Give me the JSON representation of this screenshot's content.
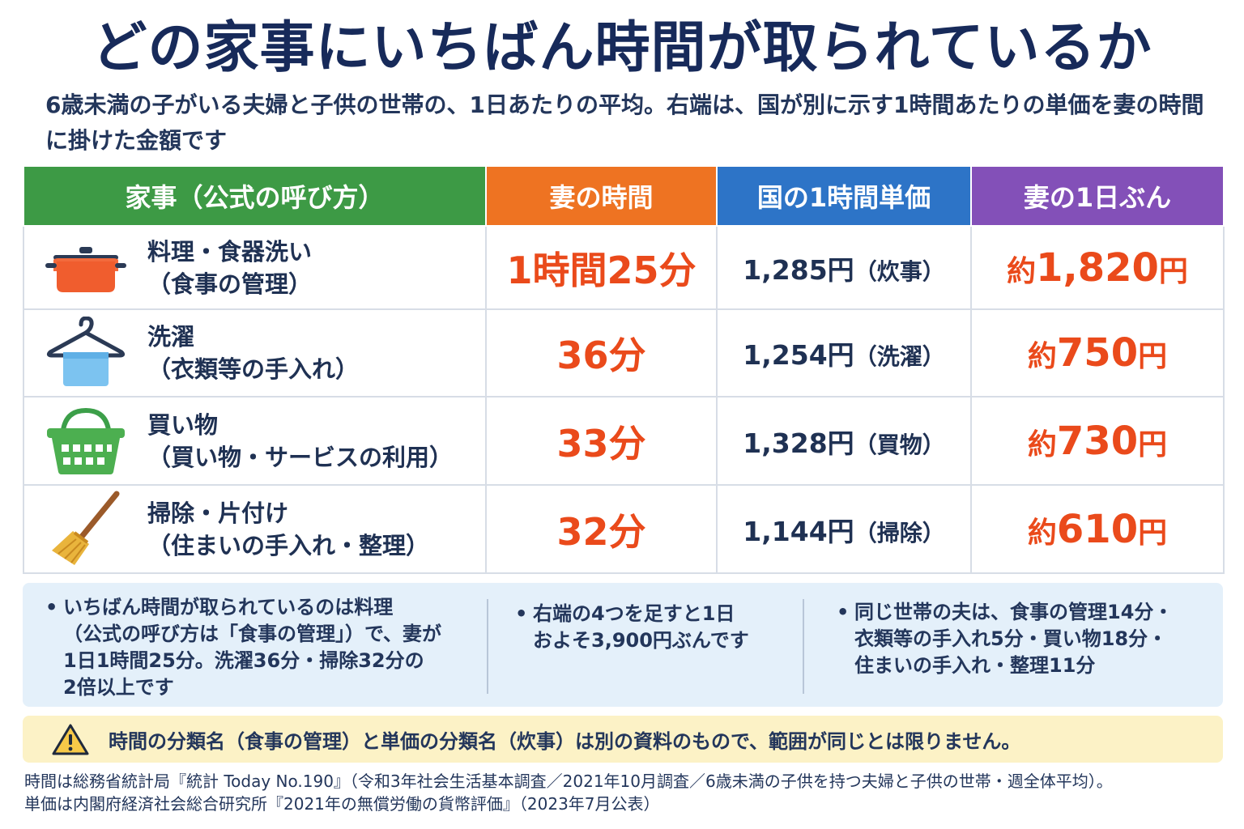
{
  "title": "どの家事にいちばん時間が取られているか",
  "subtitle": "6歳未満の子がいる夫婦と子供の世帯の、1日あたりの平均。右端は、国が別に示す1時間あたりの単価を妻の時間に掛けた金額です",
  "table": {
    "headers": [
      "家事（公式の呼び方）",
      "妻の時間",
      "国の1時間単価",
      "妻の1日ぶん"
    ],
    "header_colors": [
      "#3d9a45",
      "#ee7322",
      "#2d74c7",
      "#8350b8"
    ],
    "rows": [
      {
        "icon": "cooking-pot-icon",
        "name": "料理・食器洗い",
        "official": "（食事の管理）",
        "time": "1時間25分",
        "rate": "1,285円",
        "rate_category": "（炊事）",
        "amount_prefix": "約",
        "amount": "1,820",
        "amount_suffix": "円"
      },
      {
        "icon": "clothes-hanger-icon",
        "name": "洗濯",
        "official": "（衣類等の手入れ）",
        "time": "36分",
        "rate": "1,254円",
        "rate_category": "（洗濯）",
        "amount_prefix": "約",
        "amount": "750",
        "amount_suffix": "円"
      },
      {
        "icon": "shopping-basket-icon",
        "name": "買い物",
        "official": "（買い物・サービスの利用）",
        "time": "33分",
        "rate": "1,328円",
        "rate_category": "（買物）",
        "amount_prefix": "約",
        "amount": "730",
        "amount_suffix": "円"
      },
      {
        "icon": "broom-icon",
        "name": "掃除・片付け",
        "official": "（住まいの手入れ・整理）",
        "time": "32分",
        "rate": "1,144円",
        "rate_category": "（掃除）",
        "amount_prefix": "約",
        "amount": "610",
        "amount_suffix": "円"
      }
    ]
  },
  "notes": [
    {
      "lines": [
        "いちばん時間が取られているのは料理",
        "（公式の呼び方は「食事の管理」）で、妻が",
        "1日1時間25分。洗濯36分・掃除32分の",
        "2倍以上です"
      ]
    },
    {
      "lines": [
        "右端の4つを足すと1日",
        "およそ3,900円ぶんです"
      ]
    },
    {
      "lines": [
        "同じ世帯の夫は、食事の管理14分・",
        "衣類等の手入れ5分・買い物18分・",
        "住まいの手入れ・整理11分"
      ]
    }
  ],
  "bullet": "•",
  "warning": {
    "icon": "warning-icon",
    "text": "時間の分類名（食事の管理）と単価の分類名（炊事）は別の資料のもので、範囲が同じとは限りません。"
  },
  "source": [
    "時間は総務省統計局『統計 Today No.190』（令和3年社会生活基本調査／2021年10月調査／6歳未満の子供を持つ夫婦と子供の世帯・週全体平均）。",
    "単価は内閣府経済社会総合研究所『2021年の無償労働の貨幣評価』（2023年7月公表）"
  ],
  "colors": {
    "accent_red": "#ea4a1b",
    "navy": "#172a5a",
    "note_bg": "#e4f0fa",
    "warn_bg": "#fcf2c6"
  }
}
